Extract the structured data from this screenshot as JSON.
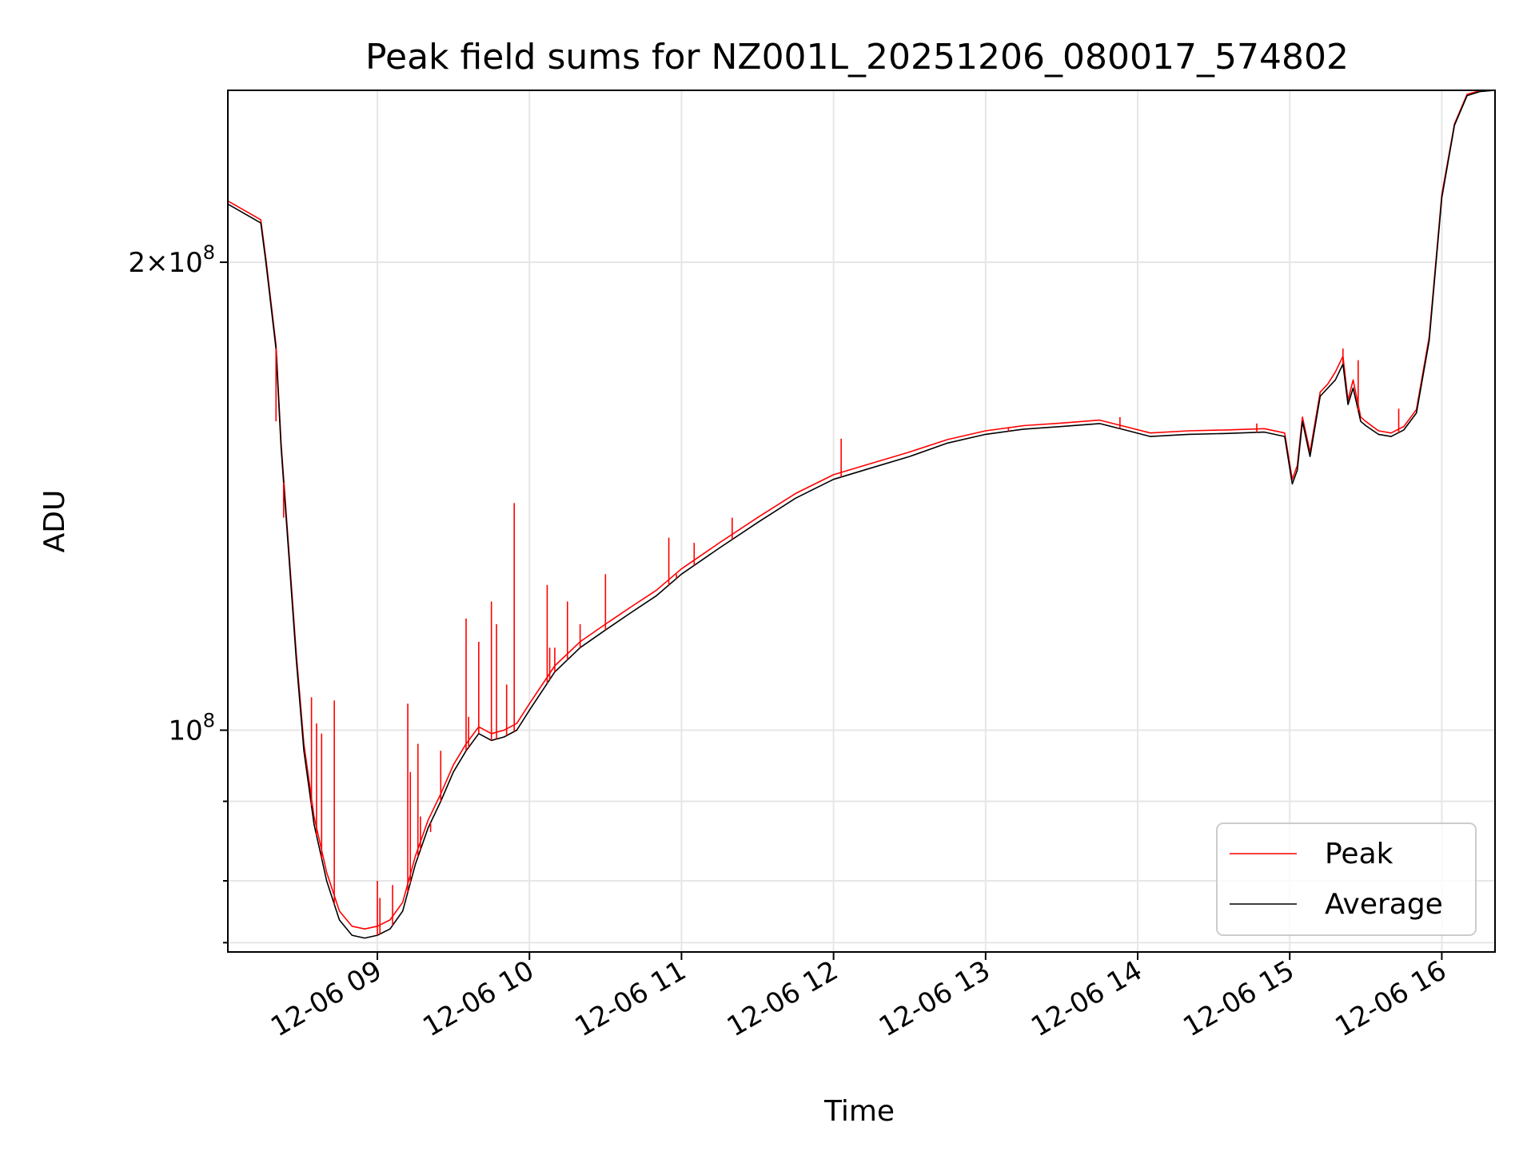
{
  "chart_data": {
    "type": "line",
    "title": "Peak field sums for NZ001L_20251206_080017_574802",
    "xlabel": "Time",
    "ylabel": "ADU",
    "y_scale": "log",
    "ylim": [
      72000000,
      258000000
    ],
    "xlim": [
      "2025-12-06 08:01",
      "2025-12-06 16:21"
    ],
    "x_ticks": [
      "2025-12-06 09:00",
      "2025-12-06 10:00",
      "2025-12-06 11:00",
      "2025-12-06 12:00",
      "2025-12-06 13:00",
      "2025-12-06 14:00",
      "2025-12-06 15:00",
      "2025-12-06 16:00"
    ],
    "x_tick_labels": [
      "12-06 09",
      "12-06 10",
      "12-06 11",
      "12-06 12",
      "12-06 13",
      "12-06 14",
      "12-06 15",
      "12-06 16"
    ],
    "y_major_ticks": [
      100000000,
      200000000
    ],
    "y_major_tick_labels": [
      "10^8",
      "2×10^8"
    ],
    "y_minor_ticks": [
      73000000,
      80000000,
      90000000
    ],
    "grid": true,
    "legend_position": "lower right",
    "legend": [
      "Peak",
      "Average"
    ],
    "series": [
      {
        "name": "Average",
        "color": "#000000",
        "x": [
          "2025-12-06 08:01",
          "2025-12-06 08:14",
          "2025-12-06 08:16",
          "2025-12-06 08:20",
          "2025-12-06 08:22",
          "2025-12-06 08:25",
          "2025-12-06 08:28",
          "2025-12-06 08:31",
          "2025-12-06 08:35",
          "2025-12-06 08:40",
          "2025-12-06 08:45",
          "2025-12-06 08:50",
          "2025-12-06 08:55",
          "2025-12-06 09:00",
          "2025-12-06 09:05",
          "2025-12-06 09:10",
          "2025-12-06 09:15",
          "2025-12-06 09:20",
          "2025-12-06 09:25",
          "2025-12-06 09:30",
          "2025-12-06 09:35",
          "2025-12-06 09:40",
          "2025-12-06 09:45",
          "2025-12-06 09:50",
          "2025-12-06 09:55",
          "2025-12-06 10:00",
          "2025-12-06 10:10",
          "2025-12-06 10:20",
          "2025-12-06 10:30",
          "2025-12-06 10:40",
          "2025-12-06 10:50",
          "2025-12-06 11:00",
          "2025-12-06 11:15",
          "2025-12-06 11:30",
          "2025-12-06 11:45",
          "2025-12-06 12:00",
          "2025-12-06 12:15",
          "2025-12-06 12:30",
          "2025-12-06 12:45",
          "2025-12-06 13:00",
          "2025-12-06 13:15",
          "2025-12-06 13:30",
          "2025-12-06 13:45",
          "2025-12-06 13:55",
          "2025-12-06 14:05",
          "2025-12-06 14:20",
          "2025-12-06 14:35",
          "2025-12-06 14:50",
          "2025-12-06 14:58",
          "2025-12-06 15:01",
          "2025-12-06 15:03",
          "2025-12-06 15:05",
          "2025-12-06 15:08",
          "2025-12-06 15:12",
          "2025-12-06 15:15",
          "2025-12-06 15:18",
          "2025-12-06 15:21",
          "2025-12-06 15:23",
          "2025-12-06 15:25",
          "2025-12-06 15:28",
          "2025-12-06 15:30",
          "2025-12-06 15:35",
          "2025-12-06 15:40",
          "2025-12-06 15:45",
          "2025-12-06 15:50",
          "2025-12-06 15:55",
          "2025-12-06 16:00",
          "2025-12-06 16:05",
          "2025-12-06 16:10",
          "2025-12-06 16:15",
          "2025-12-06 16:21"
        ],
        "values": [
          218000000,
          212000000,
          200000000,
          176000000,
          152000000,
          130000000,
          111000000,
          97000000,
          87000000,
          80000000,
          75500000,
          73800000,
          73500000,
          73800000,
          74500000,
          76500000,
          82000000,
          86500000,
          90000000,
          94000000,
          97000000,
          99500000,
          98500000,
          99000000,
          100000000,
          103000000,
          109000000,
          113000000,
          116000000,
          119000000,
          122000000,
          126000000,
          131000000,
          136000000,
          141000000,
          145000000,
          147500000,
          150000000,
          153000000,
          155000000,
          156200000,
          156800000,
          157500000,
          156000000,
          154500000,
          155000000,
          155200000,
          155500000,
          154500000,
          144000000,
          147000000,
          158000000,
          150000000,
          164000000,
          166000000,
          168000000,
          172000000,
          162000000,
          166000000,
          158000000,
          157000000,
          155000000,
          154500000,
          156000000,
          160000000,
          178000000,
          220000000,
          245000000,
          256000000,
          257500000,
          258000000
        ]
      },
      {
        "name": "Peak",
        "color": "#ff0000",
        "x": [
          "2025-12-06 08:01",
          "2025-12-06 08:14",
          "2025-12-06 08:16",
          "2025-12-06 08:20",
          "2025-12-06 08:22",
          "2025-12-06 08:25",
          "2025-12-06 08:28",
          "2025-12-06 08:31",
          "2025-12-06 08:35",
          "2025-12-06 08:40",
          "2025-12-06 08:45",
          "2025-12-06 08:50",
          "2025-12-06 08:55",
          "2025-12-06 09:00",
          "2025-12-06 09:05",
          "2025-12-06 09:10",
          "2025-12-06 09:15",
          "2025-12-06 09:20",
          "2025-12-06 09:25",
          "2025-12-06 09:30",
          "2025-12-06 09:35",
          "2025-12-06 09:40",
          "2025-12-06 09:45",
          "2025-12-06 09:50",
          "2025-12-06 09:55",
          "2025-12-06 10:00",
          "2025-12-06 10:10",
          "2025-12-06 10:20",
          "2025-12-06 10:30",
          "2025-12-06 10:40",
          "2025-12-06 10:50",
          "2025-12-06 11:00",
          "2025-12-06 11:15",
          "2025-12-06 11:30",
          "2025-12-06 11:45",
          "2025-12-06 12:00",
          "2025-12-06 12:15",
          "2025-12-06 12:30",
          "2025-12-06 12:45",
          "2025-12-06 13:00",
          "2025-12-06 13:15",
          "2025-12-06 13:30",
          "2025-12-06 13:45",
          "2025-12-06 13:55",
          "2025-12-06 14:05",
          "2025-12-06 14:20",
          "2025-12-06 14:35",
          "2025-12-06 14:50",
          "2025-12-06 14:58",
          "2025-12-06 15:01",
          "2025-12-06 15:03",
          "2025-12-06 15:05",
          "2025-12-06 15:08",
          "2025-12-06 15:12",
          "2025-12-06 15:15",
          "2025-12-06 15:18",
          "2025-12-06 15:21",
          "2025-12-06 15:23",
          "2025-12-06 15:25",
          "2025-12-06 15:28",
          "2025-12-06 15:30",
          "2025-12-06 15:35",
          "2025-12-06 15:40",
          "2025-12-06 15:45",
          "2025-12-06 15:50",
          "2025-12-06 15:55",
          "2025-12-06 16:00",
          "2025-12-06 16:05",
          "2025-12-06 16:10",
          "2025-12-06 16:15",
          "2025-12-06 16:21"
        ],
        "values": [
          219000000,
          213000000,
          201000000,
          177000000,
          153000000,
          131000000,
          112000000,
          98000000,
          88000000,
          81000000,
          76500000,
          74800000,
          74500000,
          74800000,
          75500000,
          77500000,
          83000000,
          87500000,
          91000000,
          95000000,
          98000000,
          100500000,
          99500000,
          100000000,
          101000000,
          104000000,
          110000000,
          114000000,
          117000000,
          120000000,
          123000000,
          127000000,
          132000000,
          137000000,
          142000000,
          146000000,
          148500000,
          151000000,
          153800000,
          155800000,
          157000000,
          157600000,
          158300000,
          156800000,
          155300000,
          155800000,
          156000000,
          156300000,
          155300000,
          145000000,
          148000000,
          159000000,
          151000000,
          165000000,
          167000000,
          170000000,
          174000000,
          163000000,
          168000000,
          159000000,
          158000000,
          155800000,
          155300000,
          156800000,
          160800000,
          179000000,
          221000000,
          245500000,
          256500000,
          257800000,
          258000000
        ]
      }
    ],
    "peak_spikes": [
      {
        "x": "2025-12-06 08:20",
        "y": 158000000
      },
      {
        "x": "2025-12-06 08:23",
        "y": 137000000
      },
      {
        "x": "2025-12-06 08:34",
        "y": 105000000
      },
      {
        "x": "2025-12-06 08:36",
        "y": 101000000
      },
      {
        "x": "2025-12-06 08:38",
        "y": 99500000
      },
      {
        "x": "2025-12-06 08:43",
        "y": 104500000
      },
      {
        "x": "2025-12-06 09:00",
        "y": 80000000
      },
      {
        "x": "2025-12-06 09:01",
        "y": 78000000
      },
      {
        "x": "2025-12-06 09:06",
        "y": 79500000
      },
      {
        "x": "2025-12-06 09:12",
        "y": 104000000
      },
      {
        "x": "2025-12-06 09:13",
        "y": 94000000
      },
      {
        "x": "2025-12-06 09:16",
        "y": 98000000
      },
      {
        "x": "2025-12-06 09:17",
        "y": 88000000
      },
      {
        "x": "2025-12-06 09:21",
        "y": 86000000
      },
      {
        "x": "2025-12-06 09:25",
        "y": 97000000
      },
      {
        "x": "2025-12-06 09:35",
        "y": 118000000
      },
      {
        "x": "2025-12-06 09:36",
        "y": 102000000
      },
      {
        "x": "2025-12-06 09:40",
        "y": 114000000
      },
      {
        "x": "2025-12-06 09:45",
        "y": 121000000
      },
      {
        "x": "2025-12-06 09:47",
        "y": 117000000
      },
      {
        "x": "2025-12-06 09:51",
        "y": 107000000
      },
      {
        "x": "2025-12-06 09:54",
        "y": 140000000
      },
      {
        "x": "2025-12-06 10:07",
        "y": 124000000
      },
      {
        "x": "2025-12-06 10:08",
        "y": 113000000
      },
      {
        "x": "2025-12-06 10:10",
        "y": 113000000
      },
      {
        "x": "2025-12-06 10:15",
        "y": 121000000
      },
      {
        "x": "2025-12-06 10:20",
        "y": 117000000
      },
      {
        "x": "2025-12-06 10:30",
        "y": 126000000
      },
      {
        "x": "2025-12-06 10:55",
        "y": 133000000
      },
      {
        "x": "2025-12-06 10:58",
        "y": 126000000
      },
      {
        "x": "2025-12-06 11:05",
        "y": 132000000
      },
      {
        "x": "2025-12-06 11:20",
        "y": 137000000
      },
      {
        "x": "2025-12-06 12:03",
        "y": 154000000
      },
      {
        "x": "2025-12-06 12:24",
        "y": 149000000
      },
      {
        "x": "2025-12-06 13:09",
        "y": 156500000
      },
      {
        "x": "2025-12-06 13:53",
        "y": 159000000
      },
      {
        "x": "2025-12-06 14:47",
        "y": 157500000
      },
      {
        "x": "2025-12-06 15:21",
        "y": 176000000
      },
      {
        "x": "2025-12-06 15:27",
        "y": 173000000
      },
      {
        "x": "2025-12-06 15:43",
        "y": 161000000
      }
    ]
  }
}
